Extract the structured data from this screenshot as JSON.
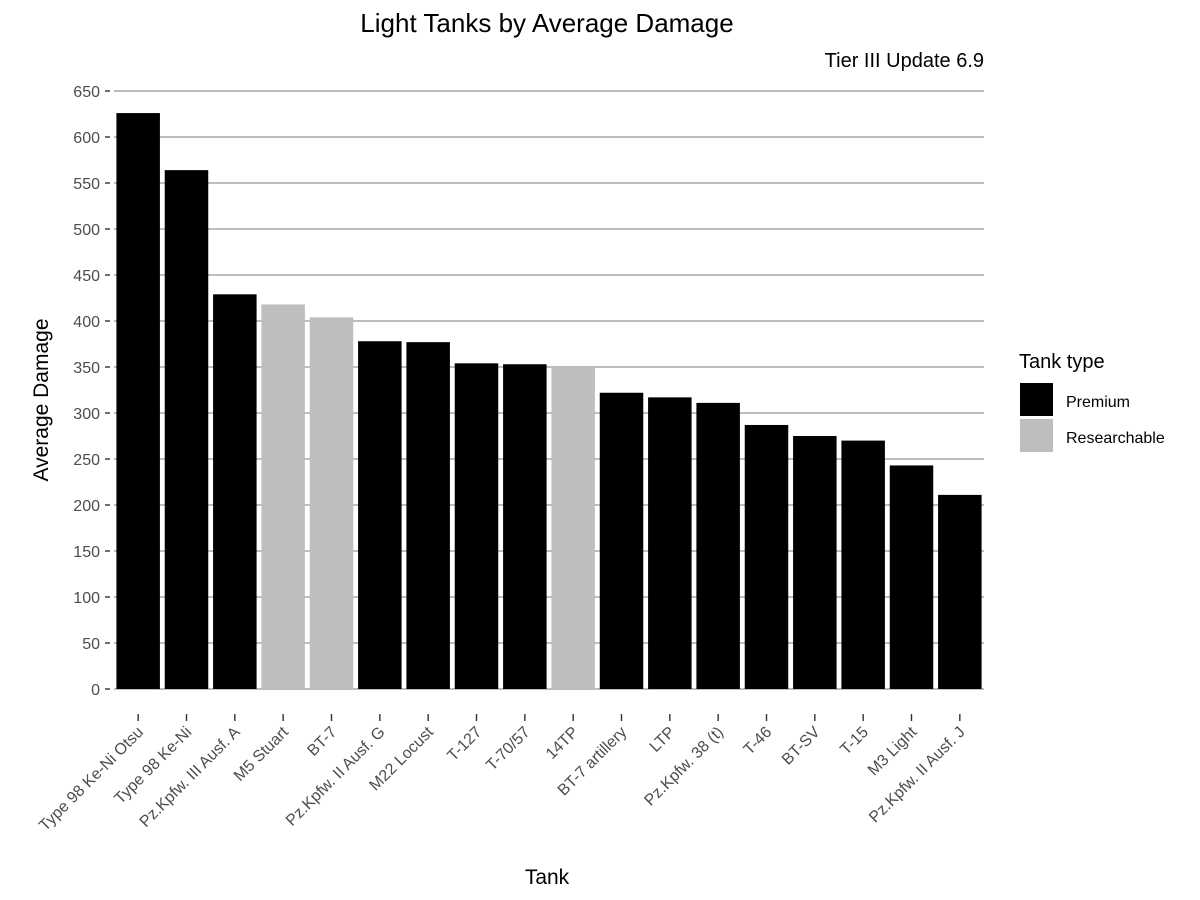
{
  "chart_data": {
    "type": "bar",
    "title": "Light Tanks by Average Damage",
    "subtitle": "Tier III Update 6.9",
    "xlabel": "Tank",
    "ylabel": "Average Damage",
    "ylim": [
      0,
      650
    ],
    "yticks": [
      0,
      50,
      100,
      150,
      200,
      250,
      300,
      350,
      400,
      450,
      500,
      550,
      600,
      650
    ],
    "grid": true,
    "categories": [
      "Type 98 Ke-Ni Otsu",
      "Type 98 Ke-Ni",
      "Pz.Kpfw. III Ausf. A",
      "M5 Stuart",
      "BT-7",
      "Pz.Kpfw. II Ausf. G",
      "M22 Locust",
      "T-127",
      "T-70/57",
      "14TP",
      "BT-7 artillery",
      "LTP",
      "Pz.Kpfw. 38 (t)",
      "T-46",
      "BT-SV",
      "T-15",
      "M3 Light",
      "Pz.Kpfw. II Ausf. J"
    ],
    "values": [
      626,
      564,
      429,
      418,
      404,
      378,
      377,
      354,
      353,
      350,
      322,
      317,
      311,
      287,
      275,
      270,
      243,
      211
    ],
    "tank_type": [
      "Premium",
      "Premium",
      "Premium",
      "Researchable",
      "Researchable",
      "Premium",
      "Premium",
      "Premium",
      "Premium",
      "Researchable",
      "Premium",
      "Premium",
      "Premium",
      "Premium",
      "Premium",
      "Premium",
      "Premium",
      "Premium"
    ],
    "legend": {
      "title": "Tank type",
      "position": "right",
      "entries": [
        {
          "label": "Premium",
          "color": "#000000"
        },
        {
          "label": "Researchable",
          "color": "#bebebe"
        }
      ]
    }
  }
}
